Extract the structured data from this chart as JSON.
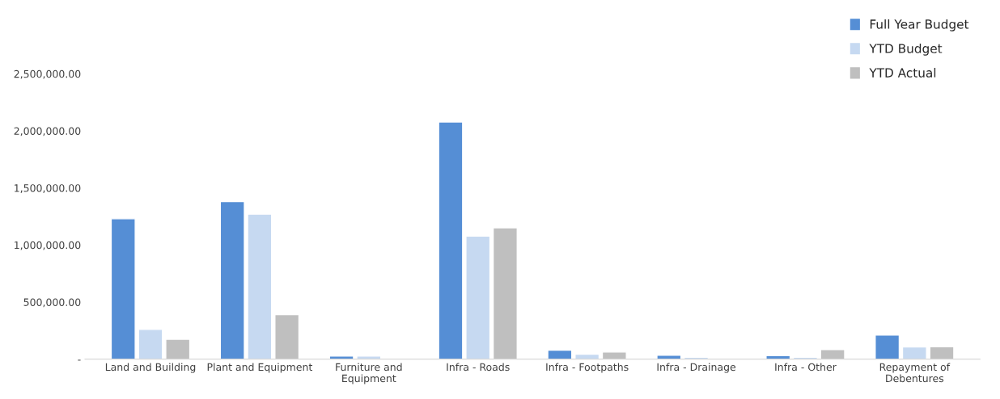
{
  "chart_data": {
    "type": "bar",
    "categories": [
      "Land and Building",
      "Plant and Equipment",
      "Furniture and\nEquipment",
      "Infra - Roads",
      "Infra - Footpaths",
      "Infra - Drainage",
      "Infra - Other",
      "Repayment of\nDebentures"
    ],
    "series": [
      {
        "name": "Full Year Budget",
        "color": "#558ed5",
        "values": [
          1230000,
          1380000,
          26000,
          2078000,
          79000,
          34000,
          31000,
          211000
        ]
      },
      {
        "name": "YTD Budget",
        "color": "#c6d9f1",
        "values": [
          260000,
          1270000,
          26000,
          1078000,
          42000,
          17000,
          17000,
          107000
        ]
      },
      {
        "name": "YTD Actual",
        "color": "#bfbfbf",
        "values": [
          174000,
          390000,
          null,
          1151000,
          62000,
          null,
          84000,
          108000
        ]
      }
    ],
    "ylim": [
      0,
      2500000
    ],
    "yticks": [
      {
        "value": 0,
        "label": "-"
      },
      {
        "value": 500000,
        "label": "500,000.00"
      },
      {
        "value": 1000000,
        "label": "1,000,000.00"
      },
      {
        "value": 1500000,
        "label": "1,500,000.00"
      },
      {
        "value": 2000000,
        "label": "2,000,000.00"
      },
      {
        "value": 2500000,
        "label": "2,500,000.00"
      }
    ],
    "grid": false,
    "legend": "top right"
  }
}
